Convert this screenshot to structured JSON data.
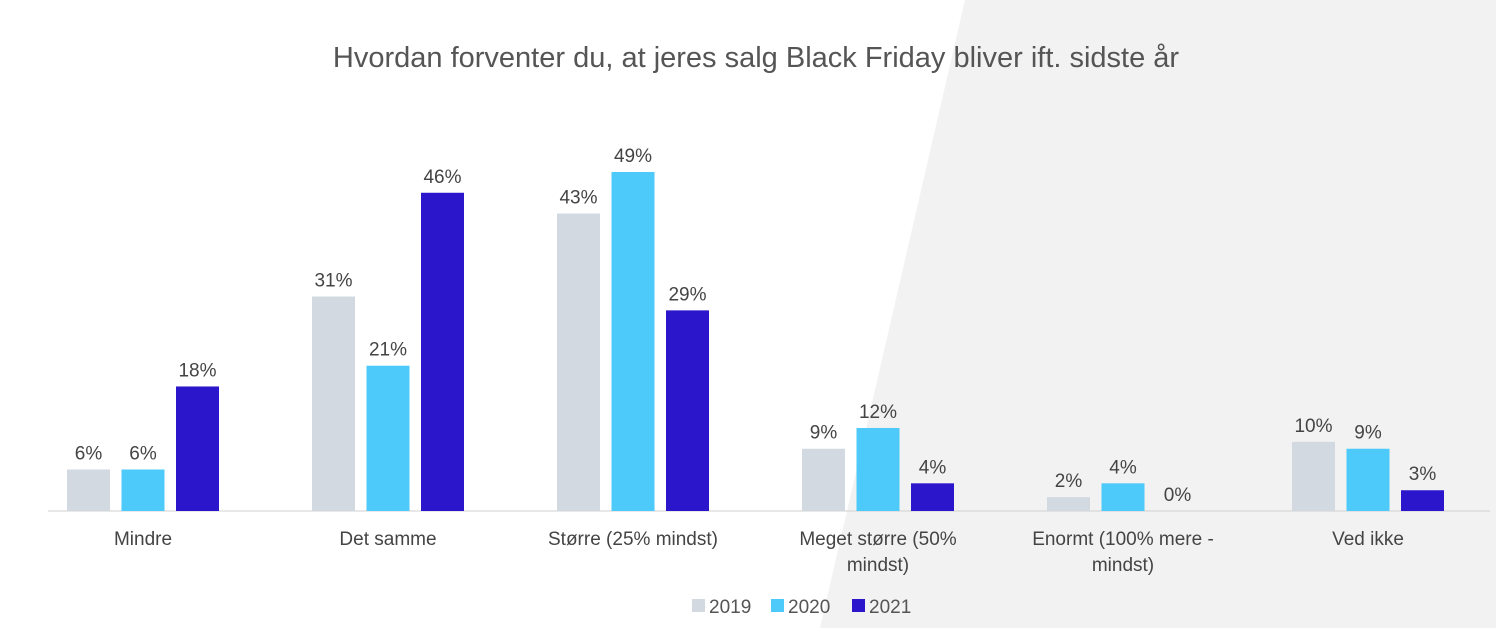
{
  "chart_data": {
    "type": "bar",
    "title": "Hvordan forventer du, at jeres salg Black Friday bliver ift. sidste år",
    "categories": [
      [
        "Mindre"
      ],
      [
        "Det samme"
      ],
      [
        "Større (25% mindst)"
      ],
      [
        "Meget større (50%",
        "mindst)"
      ],
      [
        "Enormt (100% mere -",
        "mindst)"
      ],
      [
        "Ved ikke"
      ]
    ],
    "series": [
      {
        "name": "2019",
        "color": "#d3d9e1",
        "values": [
          6,
          31,
          43,
          9,
          2,
          10
        ]
      },
      {
        "name": "2020",
        "color": "#4dc9fa",
        "values": [
          6,
          21,
          49,
          12,
          4,
          9
        ]
      },
      {
        "name": "2021",
        "color": "#2b16cc",
        "values": [
          18,
          46,
          29,
          4,
          0,
          3
        ]
      }
    ],
    "value_suffix": "%",
    "ylim": [
      0,
      49
    ],
    "grid": false,
    "legend": "bottom-center"
  }
}
